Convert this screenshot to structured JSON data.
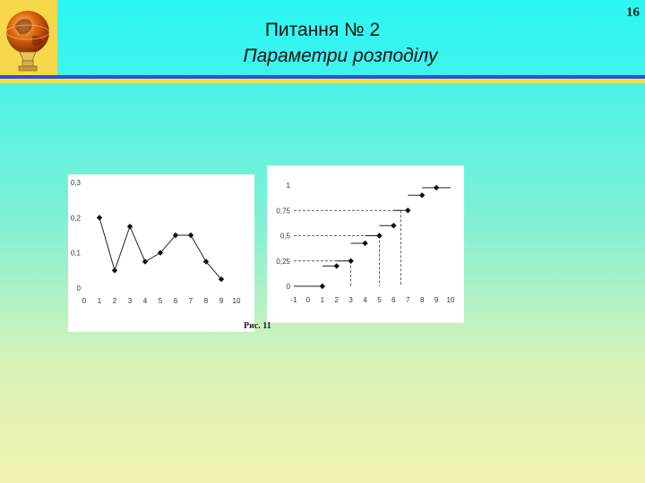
{
  "slide": {
    "title": "Питання № 2",
    "subtitle": "Параметри розподілу",
    "page_number": "16",
    "caption": "Рис. 11",
    "colors": {
      "blue_rule": "#2f4fd0",
      "yellow_rule": "#f3e047",
      "logo_bg": "#f6d84a"
    },
    "logo_icon": "globe-trophy-icon"
  },
  "chart_data": [
    {
      "type": "line",
      "x": [
        1,
        2,
        3,
        4,
        5,
        6,
        7,
        8,
        9
      ],
      "series": [
        {
          "values": [
            0.2,
            0.05,
            0.175,
            0.075,
            0.1,
            0.15,
            0.15,
            0.075,
            0.025
          ]
        }
      ],
      "xlim": [
        0,
        10
      ],
      "ylim": [
        0,
        0.3
      ],
      "x_ticks": [
        "0",
        "1",
        "2",
        "3",
        "4",
        "5",
        "6",
        "7",
        "8",
        "9",
        "10"
      ],
      "y_ticks": [
        {
          "value": 0,
          "label": "0"
        },
        {
          "value": 0.1,
          "label": "0,1"
        },
        {
          "value": 0.2,
          "label": "0,2"
        },
        {
          "value": 0.3,
          "label": "0,3"
        }
      ],
      "marker": "diamond",
      "grid": false
    },
    {
      "type": "step",
      "steps": [
        {
          "from": -1,
          "to": 1,
          "value": 0
        },
        {
          "from": 1,
          "to": 2,
          "value": 0.2
        },
        {
          "from": 2,
          "to": 3,
          "value": 0.25
        },
        {
          "from": 3,
          "to": 4,
          "value": 0.425
        },
        {
          "from": 4,
          "to": 5,
          "value": 0.5
        },
        {
          "from": 5,
          "to": 6,
          "value": 0.6
        },
        {
          "from": 6,
          "to": 7,
          "value": 0.75
        },
        {
          "from": 7,
          "to": 8,
          "value": 0.9
        },
        {
          "from": 8,
          "to": 10,
          "value": 0.975
        }
      ],
      "points": [
        {
          "x": 1,
          "y": 0
        },
        {
          "x": 2,
          "y": 0.2
        },
        {
          "x": 3,
          "y": 0.25
        },
        {
          "x": 4,
          "y": 0.425
        },
        {
          "x": 5,
          "y": 0.5
        },
        {
          "x": 6,
          "y": 0.6
        },
        {
          "x": 7,
          "y": 0.75
        },
        {
          "x": 8,
          "y": 0.9
        },
        {
          "x": 9,
          "y": 0.975
        }
      ],
      "reference_lines": [
        {
          "y": 0.25,
          "x": 3
        },
        {
          "y": 0.5,
          "x": 5
        },
        {
          "y": 0.75,
          "x": 6.5
        }
      ],
      "xlim": [
        -1,
        10
      ],
      "ylim": [
        0,
        1
      ],
      "x_ticks": [
        "-1",
        "0",
        "1",
        "2",
        "3",
        "4",
        "5",
        "6",
        "7",
        "8",
        "9",
        "10"
      ],
      "y_ticks": [
        {
          "value": 0,
          "label": "0"
        },
        {
          "value": 0.25,
          "label": "0,25"
        },
        {
          "value": 0.5,
          "label": "0,5"
        },
        {
          "value": 0.75,
          "label": "0,75"
        },
        {
          "value": 1,
          "label": "1"
        }
      ],
      "marker": "diamond",
      "grid": false
    }
  ]
}
